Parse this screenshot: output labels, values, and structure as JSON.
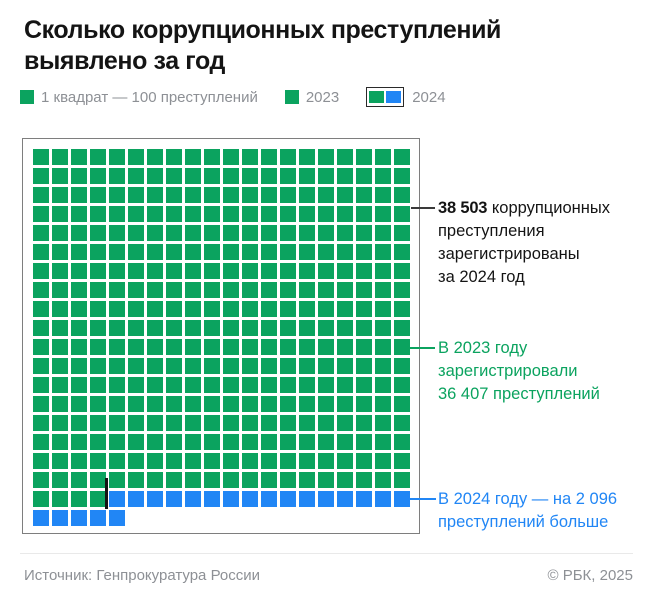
{
  "title": {
    "line1": "Сколько коррупционных преступлений",
    "line2": "выявлено за год"
  },
  "legend": {
    "unit_label": "1 квадрат — 100 преступлений",
    "year2023_label": "2023",
    "year2024_label": "2024"
  },
  "colors": {
    "green": "#0ba35f",
    "blue": "#2186f5",
    "title_text": "#141414",
    "muted_text": "#8d9095",
    "frame_border": "#7e7e7e"
  },
  "chart_data": {
    "type": "waffle",
    "columns": 20,
    "rows": 20,
    "unit_per_square": 100,
    "title": "Сколько коррупционных преступлений выявлено за год",
    "series": [
      {
        "name": "2023",
        "value": 36407,
        "squares": 364,
        "color": "#0ba35f"
      },
      {
        "name": "2024 прирост",
        "value": 2096,
        "squares": 21,
        "color": "#2186f5"
      }
    ],
    "total_2024": {
      "value": 38503,
      "squares": 385
    },
    "legend_position": "top",
    "grid": "off"
  },
  "annotations": [
    {
      "value": "38 503",
      "lines": [
        "коррупционных",
        "преступления",
        "зарегистрированы",
        "за 2024 год"
      ]
    },
    {
      "lines": [
        "В 2023 году",
        "зарегистрировали",
        "36 407 преступлений"
      ]
    },
    {
      "lines": [
        "В 2024 году — на 2 096",
        "преступлений больше"
      ]
    }
  ],
  "footer": {
    "source": "Источник: Генпрокуратура России",
    "copyright": "© РБК, 2025"
  }
}
